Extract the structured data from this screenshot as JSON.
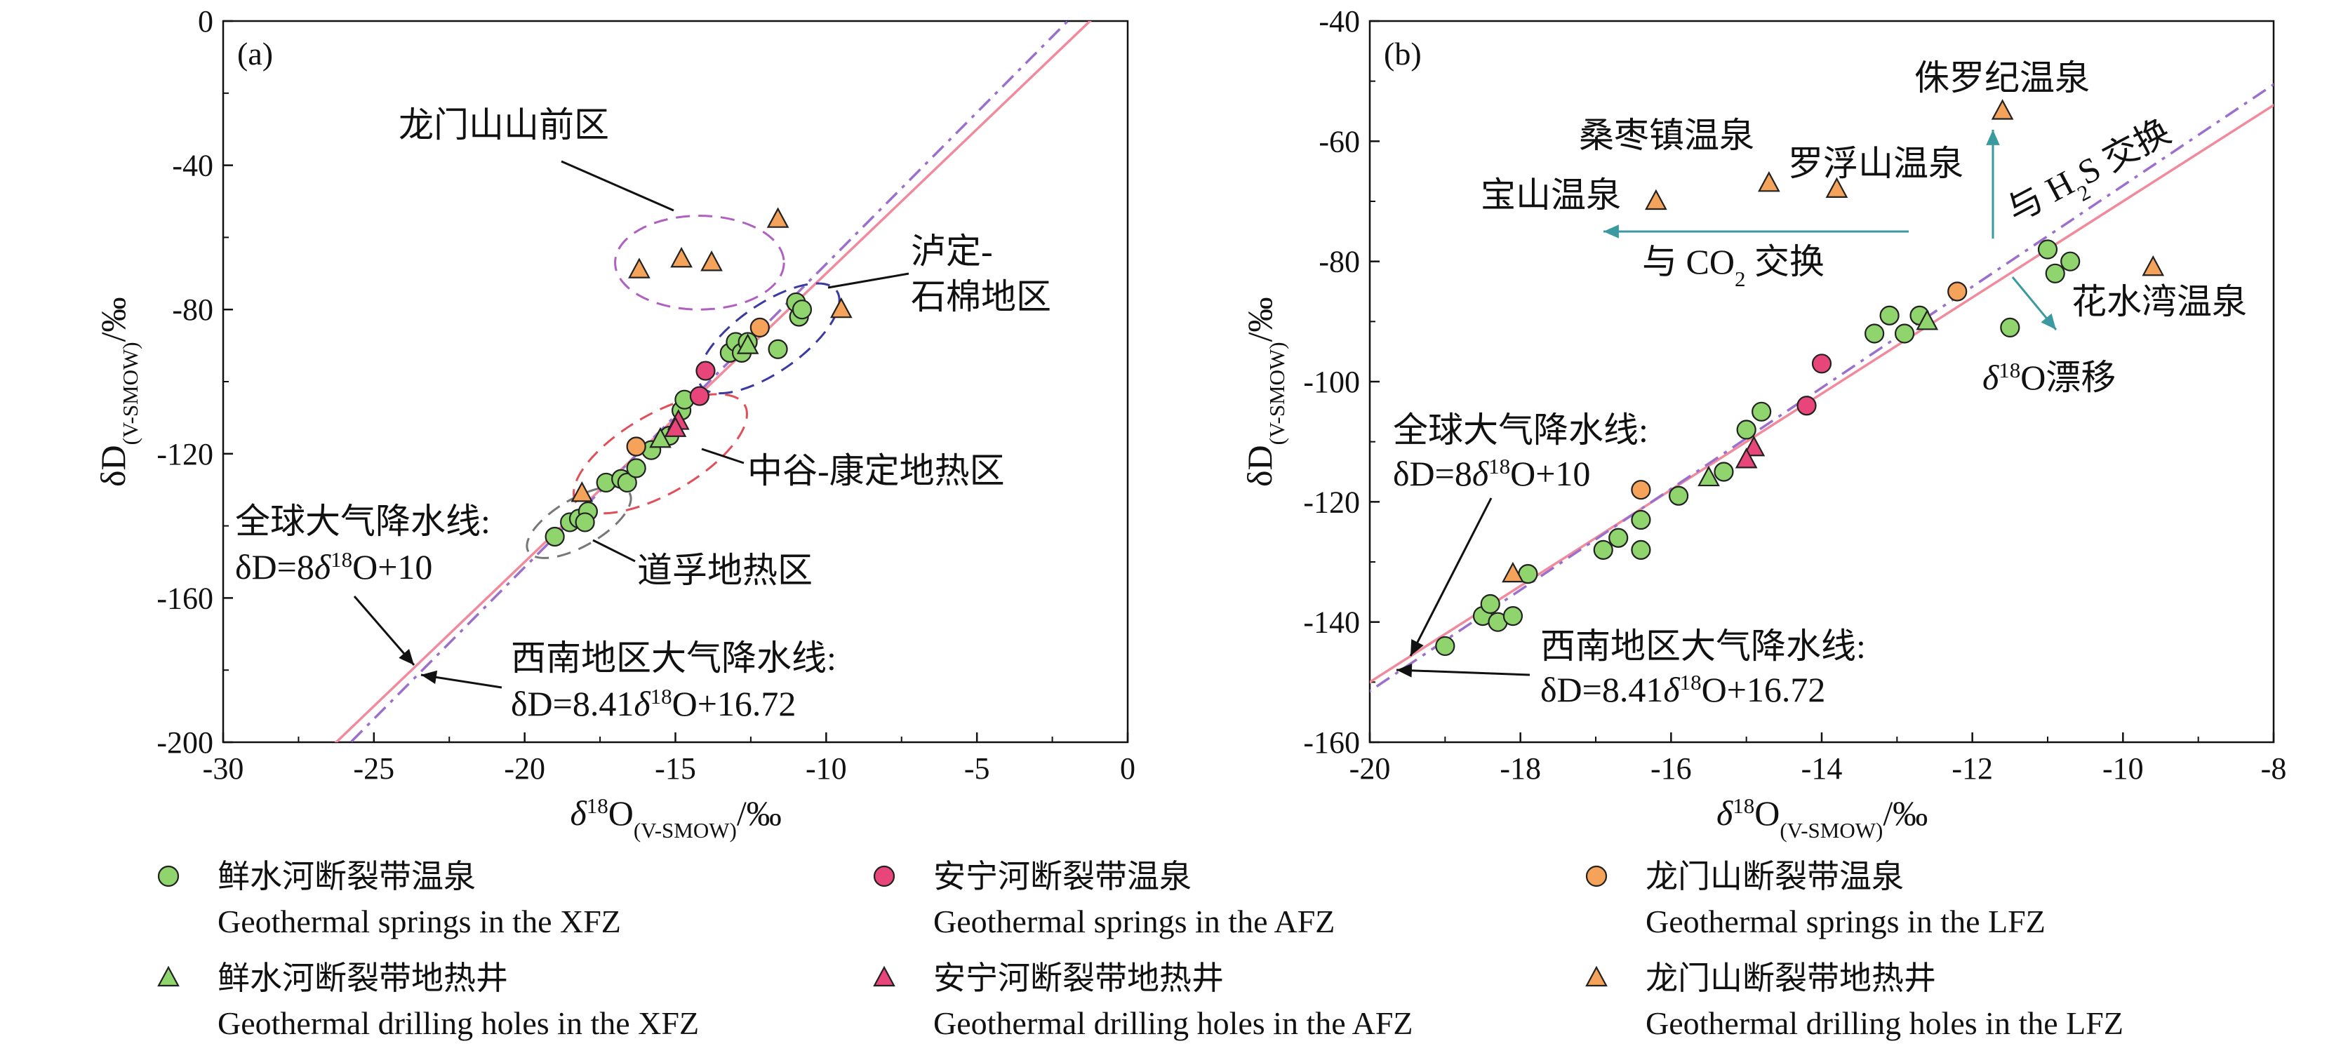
{
  "chart_data": [
    {
      "panel": "(a)",
      "type": "scatter",
      "xlim": [
        -30,
        0
      ],
      "ylim": [
        -200,
        0
      ],
      "xticks": [
        -30,
        -25,
        -20,
        -15,
        -10,
        -5,
        0
      ],
      "yticks": [
        0,
        -40,
        -80,
        -120,
        -160,
        -200
      ],
      "xlabel_parts": [
        "δ",
        "18",
        "O",
        "(V-SMOW)",
        "/‰"
      ],
      "ylabel_parts": [
        "δD",
        "(V-SMOW)",
        "/‰"
      ],
      "lines": [
        {
          "name": "gmwl",
          "slope": 8,
          "intercept": 10,
          "color": "#f08a9c",
          "dash": ""
        },
        {
          "name": "swmwl",
          "slope": 8.41,
          "intercept": 16.72,
          "color": "#9a70cc",
          "dash": "22,10,5,10"
        }
      ],
      "ellipses": [
        {
          "cx": -14.2,
          "cy": -67,
          "rx": 2.8,
          "ry": 13,
          "angle": 0,
          "color": "#b060c0"
        },
        {
          "cx": -11.9,
          "cy": -88,
          "rx": 1.9,
          "ry": 17,
          "angle": 35,
          "color": "#3a3aa0"
        },
        {
          "cx": -15.5,
          "cy": -120,
          "rx": 1.9,
          "ry": 20,
          "angle": 30,
          "color": "#e0505a"
        },
        {
          "cx": -18.2,
          "cy": -139,
          "rx": 1.1,
          "ry": 12,
          "angle": 30,
          "color": "#777777"
        }
      ],
      "annotations": [
        {
          "text": "龙门山山前区"
        },
        {
          "text_lines": [
            "泸定-",
            "石棉地区"
          ]
        },
        {
          "text": "中谷-康定地热区"
        },
        {
          "text": "道孚地热区"
        },
        {
          "gmwl_title": "全球大气降水线:",
          "gmwl_eq_parts": [
            "δD=8",
            "δ",
            "18",
            "O+10"
          ]
        },
        {
          "swmwl_title": "西南地区大气降水线:",
          "swmwl_eq_parts": [
            "δD=8.41",
            "δ",
            "18",
            "O+16.72"
          ]
        }
      ],
      "series": [
        {
          "key": "xfz_spring",
          "points": [
            [
              -19.0,
              -143
            ],
            [
              -18.5,
              -139
            ],
            [
              -18.2,
              -138
            ],
            [
              -17.9,
              -136
            ],
            [
              -18.0,
              -139
            ],
            [
              -17.3,
              -128
            ],
            [
              -16.8,
              -127
            ],
            [
              -16.6,
              -128
            ],
            [
              -16.3,
              -124
            ],
            [
              -15.8,
              -119
            ],
            [
              -15.2,
              -115
            ],
            [
              -14.8,
              -108
            ],
            [
              -14.7,
              -105
            ],
            [
              -13.2,
              -92
            ],
            [
              -13.0,
              -89
            ],
            [
              -12.8,
              -92
            ],
            [
              -12.6,
              -89
            ],
            [
              -11.6,
              -91
            ],
            [
              -11.0,
              -78
            ],
            [
              -10.9,
              -82
            ],
            [
              -10.8,
              -80
            ]
          ]
        },
        {
          "key": "afz_spring",
          "points": [
            [
              -14.2,
              -104
            ],
            [
              -14.0,
              -97
            ]
          ]
        },
        {
          "key": "lfz_spring",
          "points": [
            [
              -16.3,
              -118
            ],
            [
              -12.2,
              -85
            ]
          ]
        },
        {
          "key": "xfz_well",
          "points": [
            [
              -15.5,
              -116
            ],
            [
              -12.6,
              -90
            ]
          ]
        },
        {
          "key": "afz_well",
          "points": [
            [
              -14.9,
              -111
            ],
            [
              -15.0,
              -113
            ]
          ]
        },
        {
          "key": "lfz_well",
          "points": [
            [
              -18.1,
              -131
            ],
            [
              -16.2,
              -69
            ],
            [
              -14.8,
              -66
            ],
            [
              -13.8,
              -67
            ],
            [
              -11.6,
              -55
            ],
            [
              -9.5,
              -80
            ]
          ]
        }
      ]
    },
    {
      "panel": "(b)",
      "type": "scatter",
      "xlim": [
        -20,
        -8
      ],
      "ylim": [
        -160,
        -40
      ],
      "xticks": [
        -20,
        -18,
        -16,
        -14,
        -12,
        -10,
        -8
      ],
      "yticks": [
        -40,
        -60,
        -80,
        -100,
        -120,
        -140,
        -160
      ],
      "xlabel_parts": [
        "δ",
        "18",
        "O",
        "(V-SMOW)",
        "/‰"
      ],
      "ylabel_parts": [
        "δD",
        "(V-SMOW)",
        "/‰"
      ],
      "lines": [
        {
          "name": "gmwl",
          "slope": 8,
          "intercept": 10,
          "color": "#f08a9c",
          "dash": ""
        },
        {
          "name": "swmwl",
          "slope": 8.41,
          "intercept": 16.72,
          "color": "#9a70cc",
          "dash": "22,10,5,10"
        }
      ],
      "arrow_color": "#3a9aa0",
      "annotations": [
        {
          "text": "侏罗纪温泉"
        },
        {
          "text": "桑枣镇温泉"
        },
        {
          "text": "罗浮山温泉"
        },
        {
          "text": "宝山温泉"
        },
        {
          "text": "花水湾温泉"
        },
        {
          "h2s_parts": [
            "与 H",
            "2",
            "S 交换"
          ]
        },
        {
          "co2_parts": [
            "与 CO",
            "2",
            " 交换"
          ]
        },
        {
          "drift_parts": [
            "δ",
            "18",
            "O漂移"
          ]
        },
        {
          "gmwl_title": "全球大气降水线:",
          "gmwl_eq_parts": [
            "δD=8",
            "δ",
            "18",
            "O+10"
          ]
        },
        {
          "swmwl_title": "西南地区大气降水线:",
          "swmwl_eq_parts": [
            "δD=8.41",
            "δ",
            "18",
            "O+16.72"
          ]
        }
      ],
      "series": [
        {
          "key": "xfz_spring",
          "points": [
            [
              -19.0,
              -144
            ],
            [
              -18.5,
              -139
            ],
            [
              -18.4,
              -137
            ],
            [
              -18.3,
              -140
            ],
            [
              -18.1,
              -139
            ],
            [
              -17.9,
              -132
            ],
            [
              -16.9,
              -128
            ],
            [
              -16.7,
              -126
            ],
            [
              -16.4,
              -128
            ],
            [
              -16.4,
              -123
            ],
            [
              -15.9,
              -119
            ],
            [
              -15.3,
              -115
            ],
            [
              -15.0,
              -108
            ],
            [
              -14.8,
              -105
            ],
            [
              -13.3,
              -92
            ],
            [
              -13.1,
              -89
            ],
            [
              -12.9,
              -92
            ],
            [
              -12.7,
              -89
            ],
            [
              -11.5,
              -91
            ],
            [
              -11.0,
              -78
            ],
            [
              -10.9,
              -82
            ],
            [
              -10.7,
              -80
            ]
          ]
        },
        {
          "key": "afz_spring",
          "points": [
            [
              -14.2,
              -104
            ],
            [
              -14.0,
              -97
            ]
          ]
        },
        {
          "key": "lfz_spring",
          "points": [
            [
              -16.4,
              -118
            ],
            [
              -12.2,
              -85
            ]
          ]
        },
        {
          "key": "xfz_well",
          "points": [
            [
              -15.5,
              -116
            ],
            [
              -12.6,
              -90
            ]
          ]
        },
        {
          "key": "afz_well",
          "points": [
            [
              -14.9,
              -111
            ],
            [
              -15.0,
              -113
            ]
          ]
        },
        {
          "key": "lfz_well",
          "points": [
            [
              -18.1,
              -132
            ],
            [
              -16.2,
              -70
            ],
            [
              -14.7,
              -67
            ],
            [
              -13.8,
              -68
            ],
            [
              -11.6,
              -55
            ],
            [
              -9.6,
              -81
            ]
          ]
        }
      ]
    }
  ],
  "legend": [
    {
      "key": "xfz_spring",
      "shape": "circle",
      "color": "#8fd46c",
      "label_cn": "鲜水河断裂带温泉",
      "label_en": "Geothermal springs in the XFZ"
    },
    {
      "key": "afz_spring",
      "shape": "circle",
      "color": "#e8457a",
      "label_cn": "安宁河断裂带温泉",
      "label_en": "Geothermal springs in the AFZ"
    },
    {
      "key": "lfz_spring",
      "shape": "circle",
      "color": "#f5a25a",
      "label_cn": "龙门山断裂带温泉",
      "label_en": "Geothermal springs in the LFZ"
    },
    {
      "key": "xfz_well",
      "shape": "triangle",
      "color": "#8fd46c",
      "label_cn": "鲜水河断裂带地热井",
      "label_en": "Geothermal drilling holes in the XFZ"
    },
    {
      "key": "afz_well",
      "shape": "triangle",
      "color": "#e8457a",
      "label_cn": "安宁河断裂带地热井",
      "label_en": "Geothermal drilling holes in the AFZ"
    },
    {
      "key": "lfz_well",
      "shape": "triangle",
      "color": "#f5a25a",
      "label_cn": "龙门山断裂带地热井",
      "label_en": "Geothermal drilling holes in the LFZ"
    }
  ]
}
